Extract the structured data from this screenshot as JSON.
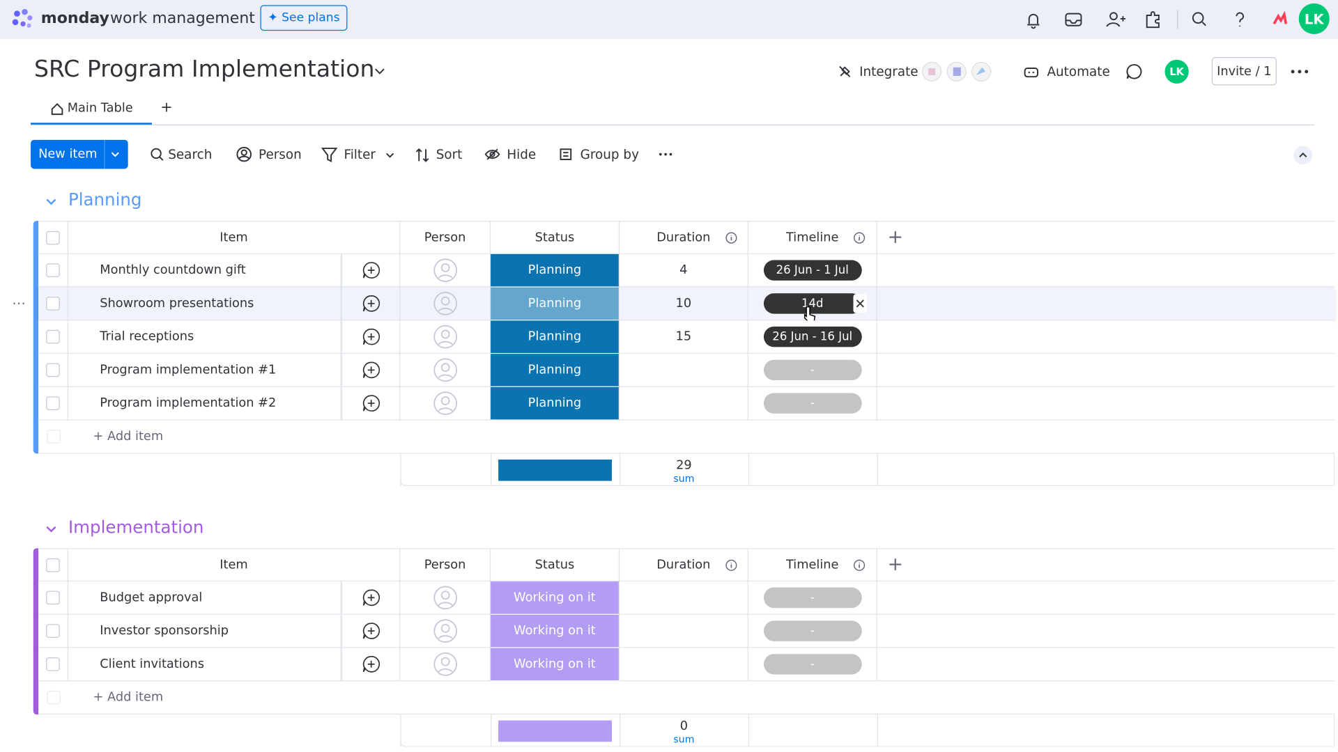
{
  "header": {
    "brand": "monday",
    "brand_suffix": "work management",
    "see_plans": "See plans",
    "avatar": "LK"
  },
  "board": {
    "title": "SRC Program Implementation",
    "integrate": "Integrate",
    "automate": "Automate",
    "avatar": "LK",
    "invite": "Invite / 1"
  },
  "tabs": [
    "Main Table",
    "+"
  ],
  "toolbar": {
    "new_item": "New item",
    "search": "Search",
    "person": "Person",
    "filter": "Filter",
    "sort": "Sort",
    "hide": "Hide",
    "group_by": "Group by"
  },
  "groups": [
    {
      "name": "Planning",
      "color": "#579bfc",
      "status_color": "#0a73b0",
      "columns": [
        "Item",
        "Person",
        "Status",
        "Duration",
        "Timeline"
      ],
      "rows": [
        {
          "item": "Monthly countdown gift",
          "status": "Planning",
          "duration": 4,
          "timeline": "26 Jun - 1 Jul"
        },
        {
          "item": "Showroom presentations",
          "status": "Planning",
          "duration": 10,
          "timeline": "14d"
        },
        {
          "item": "Trial receptions",
          "status": "Planning",
          "duration": 15,
          "timeline": "26 Jun - 16 Jul"
        },
        {
          "item": "Program implementation #1",
          "status": "Planning",
          "duration": null,
          "timeline": "-"
        },
        {
          "item": "Program implementation #2",
          "status": "Planning",
          "duration": null,
          "timeline": "-"
        }
      ],
      "add_item": "+ Add item",
      "summary": {
        "duration": 29,
        "label": "sum"
      }
    },
    {
      "name": "Implementation",
      "color": "#a25ddc",
      "status_color": "#b39cf3",
      "columns": [
        "Item",
        "Person",
        "Status",
        "Duration",
        "Timeline"
      ],
      "rows": [
        {
          "item": "Budget approval",
          "status": "Working on it",
          "duration": null,
          "timeline": "-"
        },
        {
          "item": "Investor sponsorship",
          "status": "Working on it",
          "duration": null,
          "timeline": "-"
        },
        {
          "item": "Client invitations",
          "status": "Working on it",
          "duration": null,
          "timeline": "-"
        }
      ],
      "add_item": "+ Add item",
      "summary": {
        "duration": 0,
        "label": "sum"
      }
    }
  ]
}
